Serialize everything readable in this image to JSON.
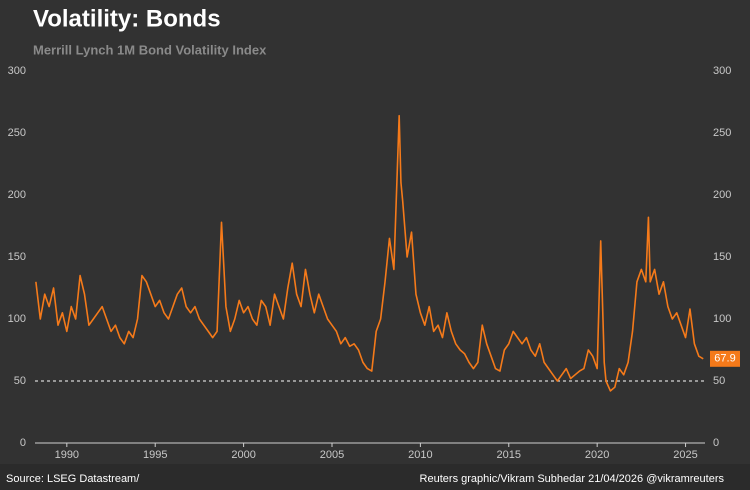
{
  "chart_data": {
    "type": "line",
    "title": "Volatility: Bonds",
    "subtitle": "Merrill Lynch 1M Bond Volatility Index",
    "source": "Source: LSEG Datastream/",
    "credit": "Reuters graphic/Vikram Subhedar 21/04/2026  @vikramreuters",
    "color": "#f57a1a",
    "reference_line": 50,
    "xlim": [
      1988.2,
      2026.1
    ],
    "xticks": [
      1990,
      1995,
      2000,
      2005,
      2010,
      2015,
      2020,
      2025
    ],
    "ylim": [
      0,
      300
    ],
    "yticks": [
      0,
      50,
      100,
      150,
      200,
      250,
      300
    ],
    "x": [
      1988.25,
      1988.5,
      1988.75,
      1989,
      1989.25,
      1989.5,
      1989.75,
      1990,
      1990.25,
      1990.5,
      1990.75,
      1991,
      1991.25,
      1991.5,
      1991.75,
      1992,
      1992.25,
      1992.5,
      1992.75,
      1993,
      1993.25,
      1993.5,
      1993.75,
      1994,
      1994.25,
      1994.5,
      1994.75,
      1995,
      1995.25,
      1995.5,
      1995.75,
      1996,
      1996.25,
      1996.5,
      1996.75,
      1997,
      1997.25,
      1997.5,
      1997.75,
      1998,
      1998.25,
      1998.5,
      1998.75,
      1999,
      1999.25,
      1999.5,
      1999.75,
      2000,
      2000.25,
      2000.5,
      2000.75,
      2001,
      2001.25,
      2001.5,
      2001.75,
      2002,
      2002.25,
      2002.5,
      2002.75,
      2003,
      2003.25,
      2003.5,
      2003.75,
      2004,
      2004.25,
      2004.5,
      2004.75,
      2005,
      2005.25,
      2005.5,
      2005.75,
      2006,
      2006.25,
      2006.5,
      2006.75,
      2007,
      2007.25,
      2007.5,
      2007.75,
      2008,
      2008.25,
      2008.5,
      2008.8,
      2008.9,
      2009,
      2009.25,
      2009.5,
      2009.75,
      2010,
      2010.25,
      2010.5,
      2010.75,
      2011,
      2011.25,
      2011.5,
      2011.75,
      2012,
      2012.25,
      2012.5,
      2012.75,
      2013,
      2013.25,
      2013.5,
      2013.75,
      2014,
      2014.25,
      2014.5,
      2014.75,
      2015,
      2015.25,
      2015.5,
      2015.75,
      2016,
      2016.25,
      2016.5,
      2016.75,
      2017,
      2017.25,
      2017.5,
      2017.75,
      2018,
      2018.25,
      2018.5,
      2018.75,
      2019,
      2019.25,
      2019.5,
      2019.75,
      2020,
      2020.2,
      2020.4,
      2020.5,
      2020.75,
      2021,
      2021.25,
      2021.5,
      2021.75,
      2022,
      2022.25,
      2022.5,
      2022.75,
      2022.9,
      2023,
      2023.25,
      2023.5,
      2023.75,
      2024,
      2024.25,
      2024.5,
      2024.75,
      2025,
      2025.25,
      2025.5,
      2025.75,
      2026
    ],
    "values": [
      130,
      100,
      120,
      110,
      125,
      95,
      105,
      90,
      110,
      100,
      135,
      120,
      95,
      100,
      105,
      110,
      100,
      90,
      95,
      85,
      80,
      90,
      85,
      100,
      135,
      130,
      120,
      110,
      115,
      105,
      100,
      110,
      120,
      125,
      110,
      105,
      110,
      100,
      95,
      90,
      85,
      90,
      178,
      110,
      90,
      100,
      115,
      105,
      110,
      100,
      95,
      115,
      110,
      95,
      120,
      110,
      100,
      125,
      145,
      120,
      110,
      140,
      120,
      105,
      120,
      110,
      100,
      95,
      90,
      80,
      85,
      78,
      80,
      75,
      65,
      60,
      58,
      90,
      100,
      130,
      165,
      140,
      264,
      210,
      195,
      150,
      170,
      120,
      105,
      95,
      110,
      90,
      95,
      85,
      105,
      90,
      80,
      75,
      72,
      65,
      60,
      65,
      95,
      80,
      70,
      60,
      58,
      75,
      80,
      90,
      85,
      80,
      85,
      75,
      70,
      80,
      65,
      60,
      55,
      50,
      55,
      60,
      52,
      55,
      58,
      60,
      75,
      70,
      60,
      163,
      65,
      50,
      42,
      45,
      60,
      55,
      65,
      90,
      130,
      140,
      130,
      182,
      130,
      140,
      120,
      130,
      110,
      100,
      105,
      95,
      85,
      108,
      80,
      70,
      67.9
    ]
  }
}
